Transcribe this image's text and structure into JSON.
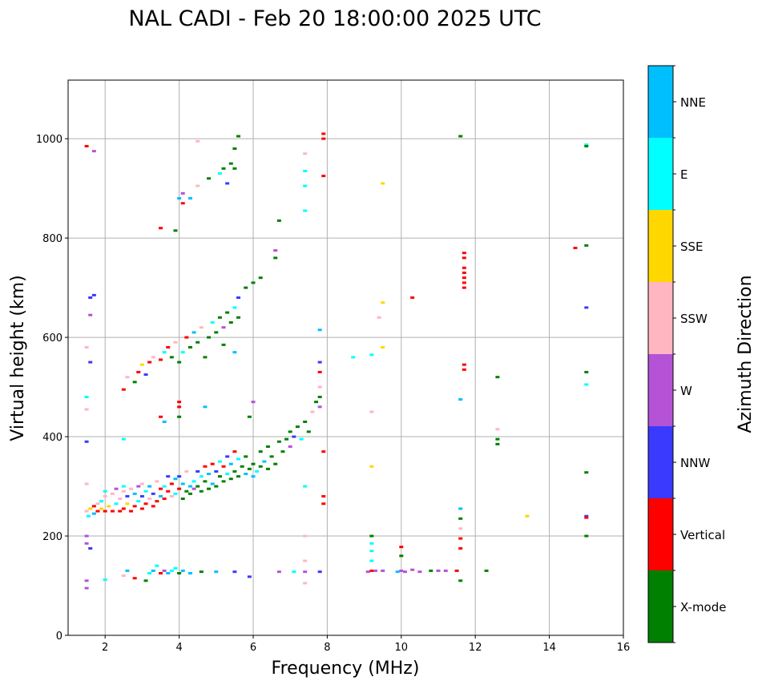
{
  "chart_data": {
    "type": "scatter",
    "title": "NAL CADI - Feb 20 18:00:00 2025 UTC",
    "xlabel": "Frequency (MHz)",
    "ylabel": "Virtual height (km)",
    "xlim": [
      1,
      16
    ],
    "ylim": [
      0,
      1118
    ],
    "xticks": [
      2,
      4,
      6,
      8,
      10,
      12,
      14,
      16
    ],
    "yticks": [
      0,
      200,
      400,
      600,
      800,
      1000
    ],
    "grid": true,
    "colorbar": {
      "label": "Azimuth Direction",
      "categories": [
        "X-mode",
        "Vertical",
        "NNW",
        "W",
        "SSW",
        "SSE",
        "E",
        "NNE"
      ],
      "colors": [
        "#008000",
        "#ff0000",
        "#3a3aff",
        "#b453d6",
        "#ffb6c1",
        "#ffd700",
        "#00ffff",
        "#00bfff"
      ]
    },
    "point_format": [
      "frequency_mhz",
      "virtual_height_km",
      "category_index"
    ],
    "points": [
      [
        1.5,
        250,
        4
      ],
      [
        1.55,
        240,
        6
      ],
      [
        1.6,
        255,
        5
      ],
      [
        1.7,
        260,
        1
      ],
      [
        1.7,
        245,
        7
      ],
      [
        1.8,
        250,
        1
      ],
      [
        1.8,
        265,
        4
      ],
      [
        1.9,
        255,
        5
      ],
      [
        1.9,
        270,
        6
      ],
      [
        2.0,
        250,
        1
      ],
      [
        2.0,
        280,
        4
      ],
      [
        2.1,
        260,
        5
      ],
      [
        2.2,
        250,
        1
      ],
      [
        2.2,
        285,
        4
      ],
      [
        2.3,
        265,
        6
      ],
      [
        2.3,
        295,
        3
      ],
      [
        2.4,
        250,
        1
      ],
      [
        2.4,
        275,
        4
      ],
      [
        2.5,
        255,
        1
      ],
      [
        2.5,
        290,
        4
      ],
      [
        2.5,
        300,
        6
      ],
      [
        2.6,
        265,
        5
      ],
      [
        2.6,
        280,
        2
      ],
      [
        2.7,
        250,
        1
      ],
      [
        2.7,
        295,
        4
      ],
      [
        2.8,
        260,
        1
      ],
      [
        2.8,
        285,
        7
      ],
      [
        2.9,
        270,
        6
      ],
      [
        2.9,
        300,
        3
      ],
      [
        3.0,
        255,
        1
      ],
      [
        3.0,
        280,
        2
      ],
      [
        3.0,
        305,
        4
      ],
      [
        3.1,
        265,
        1
      ],
      [
        3.1,
        290,
        6
      ],
      [
        3.2,
        275,
        4
      ],
      [
        3.2,
        300,
        7
      ],
      [
        3.3,
        260,
        1
      ],
      [
        3.3,
        285,
        2
      ],
      [
        3.4,
        270,
        1
      ],
      [
        3.4,
        310,
        4
      ],
      [
        3.5,
        280,
        7
      ],
      [
        3.5,
        295,
        1
      ],
      [
        3.6,
        275,
        1
      ],
      [
        3.6,
        300,
        6
      ],
      [
        3.7,
        290,
        1
      ],
      [
        3.7,
        320,
        2
      ],
      [
        3.8,
        280,
        4
      ],
      [
        3.8,
        305,
        1
      ],
      [
        3.9,
        285,
        6
      ],
      [
        3.9,
        315,
        7
      ],
      [
        4.0,
        295,
        1
      ],
      [
        4.0,
        320,
        2
      ],
      [
        4.1,
        275,
        0
      ],
      [
        4.1,
        305,
        7
      ],
      [
        4.2,
        290,
        0
      ],
      [
        4.2,
        330,
        4
      ],
      [
        4.3,
        300,
        7
      ],
      [
        4.3,
        285,
        0
      ],
      [
        4.4,
        310,
        6
      ],
      [
        4.4,
        295,
        3
      ],
      [
        4.5,
        300,
        0
      ],
      [
        4.5,
        330,
        2
      ],
      [
        4.6,
        290,
        0
      ],
      [
        4.6,
        320,
        6
      ],
      [
        4.7,
        310,
        0
      ],
      [
        4.7,
        340,
        1
      ],
      [
        4.8,
        295,
        0
      ],
      [
        4.8,
        325,
        7
      ],
      [
        4.9,
        305,
        7
      ],
      [
        4.9,
        345,
        1
      ],
      [
        5.0,
        300,
        0
      ],
      [
        5.0,
        330,
        2
      ],
      [
        5.1,
        320,
        0
      ],
      [
        5.1,
        350,
        6
      ],
      [
        5.2,
        310,
        0
      ],
      [
        5.2,
        340,
        1
      ],
      [
        5.3,
        325,
        6
      ],
      [
        5.3,
        360,
        2
      ],
      [
        5.4,
        315,
        0
      ],
      [
        5.4,
        345,
        7
      ],
      [
        5.5,
        330,
        0
      ],
      [
        5.5,
        370,
        1
      ],
      [
        5.6,
        320,
        0
      ],
      [
        5.6,
        355,
        6
      ],
      [
        5.7,
        340,
        0
      ],
      [
        5.8,
        325,
        7
      ],
      [
        5.8,
        360,
        0
      ],
      [
        5.9,
        335,
        0
      ],
      [
        6.0,
        320,
        7
      ],
      [
        6.0,
        345,
        0
      ],
      [
        6.1,
        330,
        6
      ],
      [
        6.2,
        340,
        0
      ],
      [
        6.2,
        370,
        0
      ],
      [
        6.3,
        350,
        7
      ],
      [
        6.4,
        335,
        0
      ],
      [
        6.4,
        380,
        0
      ],
      [
        6.5,
        360,
        0
      ],
      [
        6.6,
        345,
        0
      ],
      [
        6.7,
        390,
        0
      ],
      [
        6.8,
        370,
        0
      ],
      [
        6.9,
        395,
        0
      ],
      [
        7.0,
        380,
        3
      ],
      [
        7.0,
        410,
        0
      ],
      [
        7.1,
        400,
        2
      ],
      [
        7.2,
        420,
        0
      ],
      [
        7.3,
        395,
        6
      ],
      [
        7.4,
        430,
        0
      ],
      [
        7.5,
        410,
        0
      ],
      [
        7.6,
        450,
        4
      ],
      [
        7.7,
        470,
        0
      ],
      [
        7.8,
        480,
        0
      ],
      [
        7.8,
        460,
        3
      ],
      [
        7.8,
        500,
        4
      ],
      [
        7.8,
        530,
        1
      ],
      [
        7.8,
        550,
        2
      ],
      [
        2.5,
        495,
        1
      ],
      [
        2.6,
        520,
        4
      ],
      [
        2.8,
        510,
        0
      ],
      [
        2.9,
        530,
        1
      ],
      [
        3.0,
        545,
        5
      ],
      [
        3.1,
        525,
        2
      ],
      [
        3.2,
        550,
        1
      ],
      [
        3.3,
        560,
        4
      ],
      [
        3.5,
        555,
        1
      ],
      [
        3.6,
        570,
        6
      ],
      [
        3.7,
        580,
        1
      ],
      [
        3.8,
        560,
        0
      ],
      [
        3.9,
        590,
        4
      ],
      [
        4.0,
        550,
        0
      ],
      [
        4.1,
        570,
        6
      ],
      [
        4.2,
        600,
        1
      ],
      [
        4.3,
        580,
        0
      ],
      [
        4.4,
        610,
        7
      ],
      [
        4.5,
        590,
        0
      ],
      [
        4.6,
        620,
        4
      ],
      [
        4.8,
        600,
        0
      ],
      [
        4.9,
        630,
        6
      ],
      [
        5.0,
        610,
        0
      ],
      [
        5.1,
        640,
        0
      ],
      [
        5.2,
        620,
        3
      ],
      [
        5.3,
        650,
        0
      ],
      [
        5.4,
        630,
        0
      ],
      [
        5.5,
        660,
        6
      ],
      [
        5.6,
        640,
        0
      ],
      [
        5.6,
        680,
        2
      ],
      [
        5.8,
        700,
        0
      ],
      [
        6.0,
        710,
        0
      ],
      [
        6.2,
        720,
        0
      ],
      [
        6.6,
        760,
        0
      ],
      [
        6.6,
        775,
        3
      ],
      [
        5.2,
        585,
        0
      ],
      [
        5.5,
        570,
        7
      ],
      [
        4.7,
        560,
        0
      ],
      [
        3.5,
        820,
        1
      ],
      [
        3.9,
        815,
        0
      ],
      [
        4.0,
        880,
        7
      ],
      [
        4.1,
        890,
        3
      ],
      [
        4.1,
        870,
        1
      ],
      [
        4.3,
        880,
        7
      ],
      [
        4.5,
        905,
        4
      ],
      [
        4.8,
        920,
        0
      ],
      [
        5.1,
        930,
        6
      ],
      [
        5.2,
        940,
        0
      ],
      [
        5.3,
        910,
        2
      ],
      [
        5.4,
        950,
        0
      ],
      [
        5.5,
        940,
        0
      ],
      [
        5.6,
        1005,
        0
      ],
      [
        5.5,
        980,
        0
      ],
      [
        4.5,
        995,
        4
      ],
      [
        6.7,
        835,
        0
      ],
      [
        1.5,
        95,
        3
      ],
      [
        1.5,
        110,
        3
      ],
      [
        2.0,
        112,
        6
      ],
      [
        2.5,
        120,
        4
      ],
      [
        2.6,
        130,
        7
      ],
      [
        2.8,
        115,
        1
      ],
      [
        3.1,
        110,
        0
      ],
      [
        3.2,
        125,
        6
      ],
      [
        3.3,
        130,
        7
      ],
      [
        3.4,
        140,
        6
      ],
      [
        3.5,
        125,
        1
      ],
      [
        3.6,
        130,
        3
      ],
      [
        3.7,
        125,
        7
      ],
      [
        3.8,
        130,
        6
      ],
      [
        3.9,
        135,
        6
      ],
      [
        4.0,
        125,
        0
      ],
      [
        4.1,
        130,
        7
      ],
      [
        4.3,
        125,
        7
      ],
      [
        4.6,
        128,
        0
      ],
      [
        5.0,
        128,
        7
      ],
      [
        5.5,
        128,
        2
      ],
      [
        5.9,
        118,
        2
      ],
      [
        6.7,
        128,
        3
      ],
      [
        7.1,
        128,
        6
      ],
      [
        7.4,
        128,
        3
      ],
      [
        7.8,
        128,
        2
      ],
      [
        9.1,
        128,
        3
      ],
      [
        9.2,
        130,
        1
      ],
      [
        9.3,
        130,
        3
      ],
      [
        9.5,
        130,
        3
      ],
      [
        9.2,
        150,
        6
      ],
      [
        9.2,
        170,
        6
      ],
      [
        9.2,
        185,
        6
      ],
      [
        9.2,
        200,
        0
      ],
      [
        9.9,
        128,
        7
      ],
      [
        10.0,
        130,
        3
      ],
      [
        10.1,
        128,
        3
      ],
      [
        10.3,
        132,
        3
      ],
      [
        10.5,
        128,
        3
      ],
      [
        10.8,
        130,
        0
      ],
      [
        11.0,
        130,
        3
      ],
      [
        11.2,
        130,
        3
      ],
      [
        11.5,
        130,
        1
      ],
      [
        12.3,
        130,
        0
      ],
      [
        10.0,
        178,
        1
      ],
      [
        10.0,
        160,
        0
      ],
      [
        11.6,
        110,
        0
      ],
      [
        11.6,
        175,
        1
      ],
      [
        11.6,
        195,
        1
      ],
      [
        11.6,
        215,
        4
      ],
      [
        11.6,
        235,
        0
      ],
      [
        11.6,
        255,
        7
      ],
      [
        11.7,
        700,
        1
      ],
      [
        11.7,
        710,
        1
      ],
      [
        11.7,
        720,
        1
      ],
      [
        11.7,
        730,
        1
      ],
      [
        11.7,
        740,
        1
      ],
      [
        11.7,
        760,
        1
      ],
      [
        11.7,
        770,
        1
      ],
      [
        11.7,
        545,
        1
      ],
      [
        11.7,
        535,
        1
      ],
      [
        11.6,
        1005,
        0
      ],
      [
        11.6,
        475,
        7
      ],
      [
        12.6,
        520,
        0
      ],
      [
        12.6,
        415,
        4
      ],
      [
        12.6,
        395,
        0
      ],
      [
        12.6,
        385,
        0
      ],
      [
        13.4,
        240,
        5
      ],
      [
        14.7,
        780,
        1
      ],
      [
        15.0,
        785,
        0
      ],
      [
        15.0,
        660,
        2
      ],
      [
        15.0,
        530,
        0
      ],
      [
        15.0,
        505,
        6
      ],
      [
        15.0,
        328,
        0
      ],
      [
        15.0,
        240,
        2
      ],
      [
        15.0,
        237,
        1
      ],
      [
        15.0,
        200,
        0
      ],
      [
        15.0,
        988,
        6
      ],
      [
        15.0,
        985,
        0
      ],
      [
        9.5,
        910,
        5
      ],
      [
        9.5,
        670,
        5
      ],
      [
        9.5,
        580,
        5
      ],
      [
        9.4,
        640,
        4
      ],
      [
        9.2,
        565,
        6
      ],
      [
        8.7,
        560,
        6
      ],
      [
        9.2,
        340,
        5
      ],
      [
        9.2,
        450,
        4
      ],
      [
        10.3,
        680,
        1
      ],
      [
        7.9,
        1010,
        1
      ],
      [
        7.9,
        1000,
        1
      ],
      [
        7.9,
        925,
        1
      ],
      [
        7.4,
        970,
        4
      ],
      [
        7.4,
        935,
        6
      ],
      [
        7.4,
        905,
        6
      ],
      [
        7.4,
        855,
        6
      ],
      [
        7.8,
        615,
        7
      ],
      [
        7.9,
        370,
        1
      ],
      [
        7.9,
        280,
        1
      ],
      [
        7.9,
        265,
        1
      ],
      [
        7.4,
        300,
        6
      ],
      [
        7.4,
        200,
        4
      ],
      [
        7.4,
        150,
        4
      ],
      [
        7.4,
        105,
        4
      ],
      [
        1.5,
        985,
        1
      ],
      [
        1.7,
        975,
        3
      ],
      [
        1.6,
        680,
        2
      ],
      [
        1.7,
        685,
        2
      ],
      [
        1.6,
        645,
        3
      ],
      [
        1.5,
        580,
        4
      ],
      [
        1.6,
        550,
        2
      ],
      [
        1.5,
        480,
        6
      ],
      [
        1.5,
        455,
        4
      ],
      [
        1.5,
        390,
        2
      ],
      [
        1.5,
        200,
        3
      ],
      [
        1.5,
        185,
        3
      ],
      [
        1.6,
        175,
        2
      ],
      [
        1.5,
        305,
        4
      ],
      [
        2.0,
        290,
        6
      ],
      [
        2.5,
        395,
        6
      ],
      [
        4.0,
        470,
        1
      ],
      [
        4.0,
        460,
        1
      ],
      [
        4.0,
        440,
        0
      ],
      [
        3.6,
        430,
        7
      ],
      [
        3.5,
        440,
        1
      ],
      [
        4.7,
        460,
        7
      ],
      [
        5.9,
        440,
        0
      ],
      [
        6.0,
        470,
        3
      ]
    ]
  }
}
